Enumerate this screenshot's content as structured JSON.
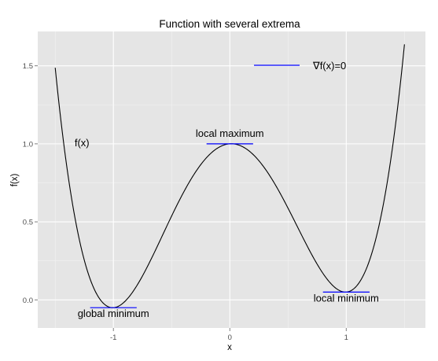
{
  "chart_data": {
    "type": "line",
    "title": "Function with several extrema",
    "xlabel": "x",
    "ylabel": "f(x)",
    "xlim": [
      -1.65,
      1.68
    ],
    "ylim": [
      -0.18,
      1.72
    ],
    "x_ticks": [
      -1,
      0,
      1
    ],
    "x_tick_labels": [
      "-1",
      "0",
      "1"
    ],
    "y_ticks": [
      0.0,
      0.5,
      1.0,
      1.5
    ],
    "y_tick_labels": [
      "0.0",
      "0.5",
      "1.0",
      "1.5"
    ],
    "grid": true,
    "background": "#e5e5e5",
    "gridline_color": "#ffffff",
    "curve": {
      "name": "f(x)",
      "color": "#000000",
      "domain": [
        -1.5,
        1.5
      ],
      "formula": "x^4 - 2x^2 + 1 + 0.05x",
      "description": "quartic with two minima and one local maximum"
    },
    "tangents": [
      {
        "x": [
          -1.2,
          -0.8
        ],
        "y": -0.05,
        "color": "#0000ff"
      },
      {
        "x": [
          -0.2,
          0.2
        ],
        "y": 1.0,
        "color": "#0000ff"
      },
      {
        "x": [
          0.8,
          1.2
        ],
        "y": 0.05,
        "color": "#0000ff"
      }
    ],
    "annotations": [
      {
        "text": "global minimum",
        "x": -1.0,
        "y": -0.11
      },
      {
        "text": "local maximum",
        "x": 0.0,
        "y": 1.045
      },
      {
        "text": "local minimum",
        "x": 1.0,
        "y": -0.01
      },
      {
        "text": "f(x)",
        "x": -1.27,
        "y": 0.985
      }
    ],
    "legend": {
      "position": "top-right",
      "label": "∇f(x)=0",
      "color": "#0000ff"
    }
  }
}
